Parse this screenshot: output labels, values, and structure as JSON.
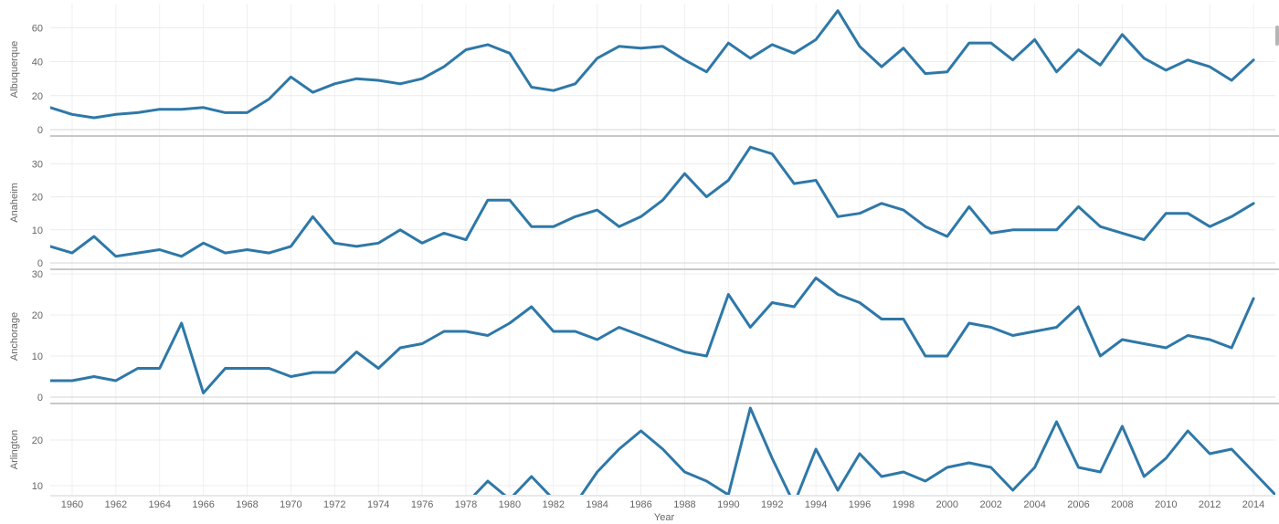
{
  "chart_data": {
    "type": "line",
    "xlabel": "Year",
    "x_tick_labels": [
      "1960",
      "1962",
      "1964",
      "1966",
      "1968",
      "1970",
      "1972",
      "1974",
      "1976",
      "1978",
      "1980",
      "1982",
      "1984",
      "1986",
      "1988",
      "1990",
      "1992",
      "1994",
      "1996",
      "1998",
      "2000",
      "2002",
      "2004",
      "2006",
      "2008",
      "2010",
      "2012",
      "2014"
    ],
    "x": [
      1959,
      1960,
      1961,
      1962,
      1963,
      1964,
      1965,
      1966,
      1967,
      1968,
      1969,
      1970,
      1971,
      1972,
      1973,
      1974,
      1975,
      1976,
      1977,
      1978,
      1979,
      1980,
      1981,
      1982,
      1983,
      1984,
      1985,
      1986,
      1987,
      1988,
      1989,
      1990,
      1991,
      1992,
      1993,
      1994,
      1995,
      1996,
      1997,
      1998,
      1999,
      2000,
      2001,
      2002,
      2003,
      2004,
      2005,
      2006,
      2007,
      2008,
      2009,
      2010,
      2011,
      2012,
      2013,
      2014,
      2015
    ],
    "xlim": [
      1959,
      2015
    ],
    "line_color": "#2e78a8",
    "panels": [
      {
        "name": "Albuquerque",
        "ylabel": "Albuquerque",
        "ylim": [
          0,
          72
        ],
        "yticks": [
          0,
          20,
          40,
          60
        ],
        "y_tick_labels": [
          "0",
          "20",
          "40",
          "60"
        ],
        "values": [
          13,
          9,
          7,
          9,
          10,
          12,
          12,
          13,
          10,
          10,
          18,
          31,
          22,
          27,
          30,
          29,
          27,
          30,
          37,
          47,
          50,
          45,
          25,
          23,
          27,
          42,
          49,
          48,
          49,
          41,
          34,
          51,
          42,
          50,
          45,
          53,
          70,
          49,
          37,
          48,
          33,
          34,
          51,
          51,
          41,
          53,
          34,
          47,
          38,
          56,
          42,
          35,
          41,
          37,
          29,
          41,
          null
        ]
      },
      {
        "name": "Anaheim",
        "ylabel": "Anaheim",
        "ylim": [
          0,
          37
        ],
        "yticks": [
          0,
          10,
          20,
          30
        ],
        "y_tick_labels": [
          "0",
          "10",
          "20",
          "30"
        ],
        "values": [
          5,
          3,
          8,
          2,
          3,
          4,
          2,
          6,
          3,
          4,
          3,
          5,
          14,
          6,
          5,
          6,
          10,
          6,
          9,
          7,
          19,
          19,
          11,
          11,
          14,
          16,
          11,
          14,
          19,
          27,
          20,
          25,
          35,
          33,
          24,
          25,
          14,
          15,
          18,
          16,
          11,
          8,
          17,
          9,
          10,
          10,
          10,
          17,
          11,
          9,
          7,
          15,
          15,
          11,
          14,
          18,
          null
        ]
      },
      {
        "name": "Anchorage",
        "ylabel": "Anchorage",
        "ylim": [
          0,
          30
        ],
        "yticks": [
          0,
          10,
          20,
          30
        ],
        "y_tick_labels": [
          "0",
          "10",
          "20",
          "30"
        ],
        "values": [
          4,
          4,
          5,
          4,
          7,
          7,
          18,
          1,
          7,
          7,
          7,
          5,
          6,
          6,
          11,
          7,
          12,
          13,
          16,
          16,
          15,
          18,
          22,
          16,
          16,
          14,
          17,
          15,
          13,
          11,
          10,
          25,
          17,
          23,
          22,
          29,
          25,
          23,
          19,
          19,
          10,
          10,
          18,
          17,
          15,
          16,
          17,
          22,
          10,
          14,
          13,
          12,
          15,
          14,
          12,
          24,
          null
        ]
      },
      {
        "name": "Arlington",
        "ylabel": "Arlington",
        "ylim": [
          8,
          27
        ],
        "yticks": [
          10,
          20
        ],
        "y_tick_labels": [
          "10",
          "20"
        ],
        "values": [
          null,
          null,
          null,
          null,
          null,
          null,
          null,
          null,
          null,
          null,
          null,
          null,
          null,
          null,
          null,
          null,
          null,
          null,
          null,
          6,
          11,
          7,
          12,
          7,
          6,
          13,
          18,
          22,
          18,
          13,
          11,
          8,
          27,
          16,
          6,
          18,
          9,
          17,
          12,
          13,
          11,
          14,
          15,
          14,
          9,
          14,
          24,
          14,
          13,
          23,
          12,
          16,
          22,
          17,
          18,
          13,
          8
        ]
      }
    ]
  }
}
